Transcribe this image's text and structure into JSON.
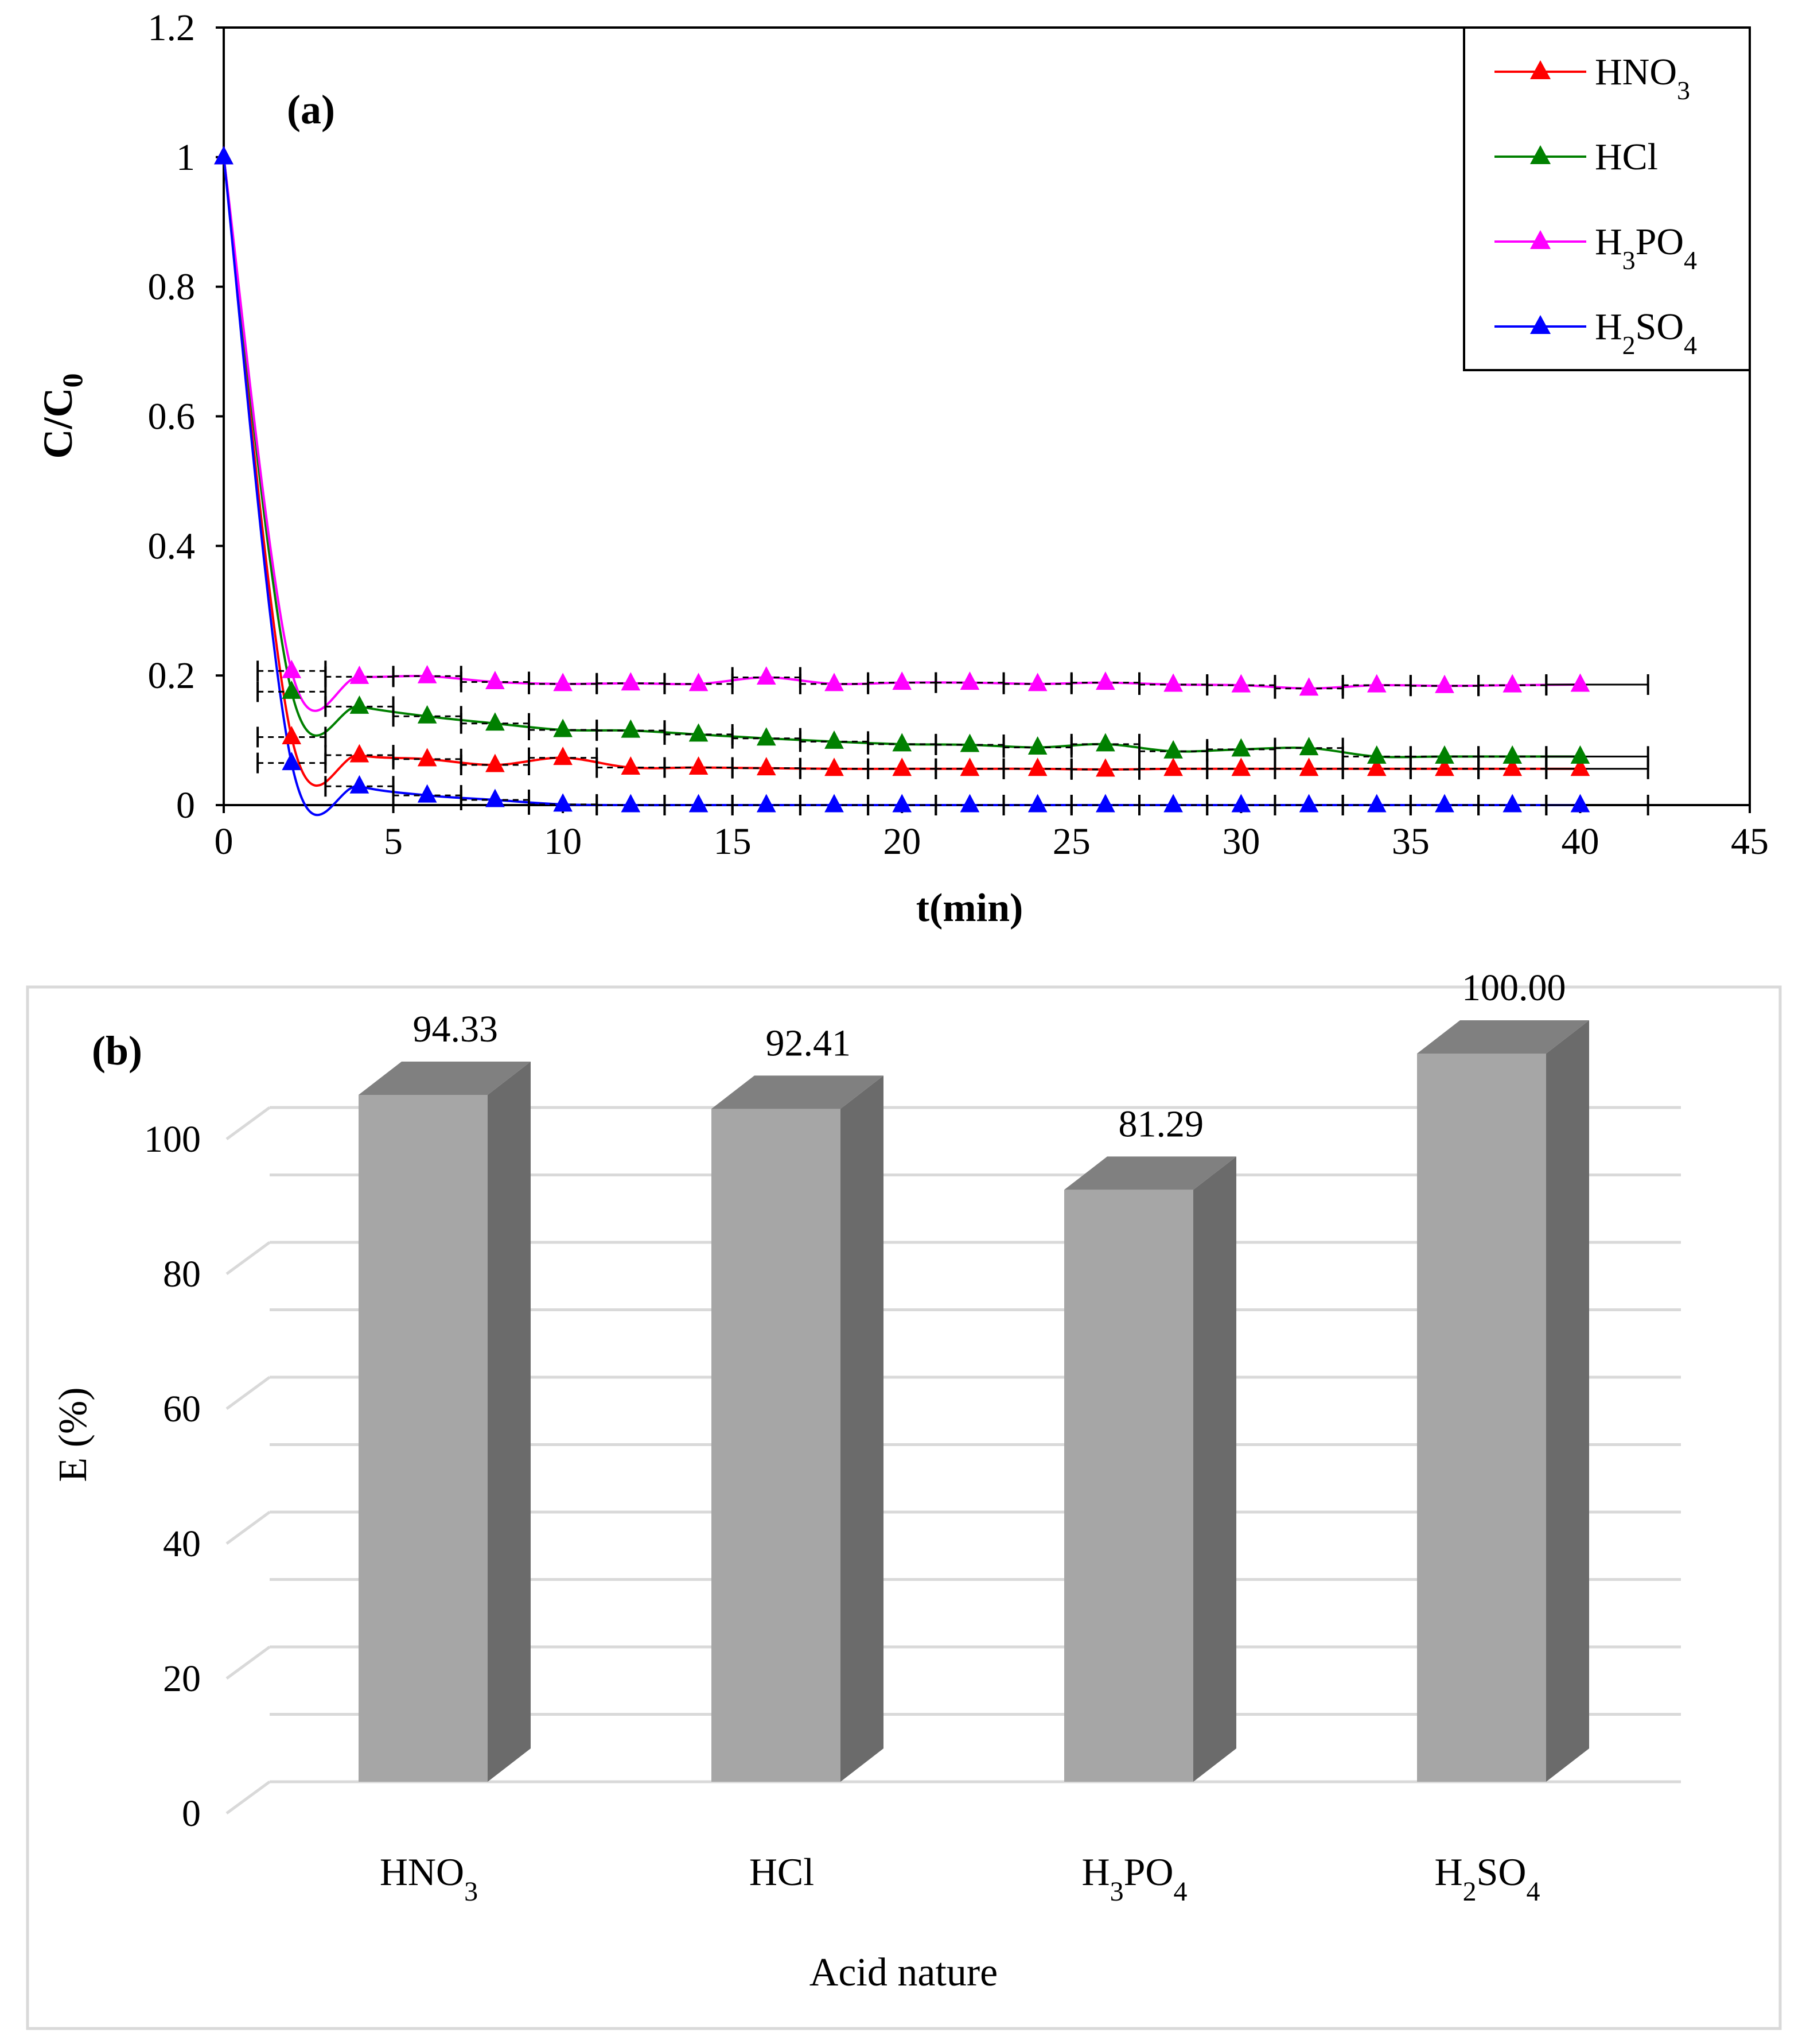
{
  "chart_data": [
    {
      "type": "line",
      "panel_label": "(a)",
      "xlabel": "t(min)",
      "ylabel": {
        "main": "C/C",
        "sub": "0"
      },
      "xlim": [
        0,
        45
      ],
      "ylim": [
        0,
        1.2
      ],
      "x_ticks": [
        "0",
        "5",
        "10",
        "15",
        "20",
        "25",
        "30",
        "35",
        "40",
        "45"
      ],
      "y_ticks": [
        "0",
        "0.2",
        "0.4",
        "0.6",
        "0.8",
        "1",
        "1.2"
      ],
      "grid": false,
      "legend_position": "top-right",
      "x": [
        0,
        2,
        4,
        6,
        8,
        10,
        12,
        14,
        16,
        18,
        20,
        22,
        24,
        26,
        28,
        30,
        32,
        34,
        36,
        38,
        40
      ],
      "series": [
        {
          "name": "HNO₃",
          "color": "#ff0000",
          "values": [
            1,
            0.105,
            0.077,
            0.071,
            0.062,
            0.073,
            0.058,
            0.058,
            0.057,
            0.056,
            0.056,
            0.056,
            0.056,
            0.055,
            0.056,
            0.056,
            0.056,
            0.056,
            0.056,
            0.056,
            0.056
          ]
        },
        {
          "name": "HCl",
          "color": "#008000",
          "values": [
            1,
            0.175,
            0.152,
            0.137,
            0.126,
            0.116,
            0.115,
            0.109,
            0.103,
            0.098,
            0.094,
            0.093,
            0.089,
            0.094,
            0.083,
            0.086,
            0.088,
            0.075,
            0.075,
            0.075,
            0.075
          ]
        },
        {
          "name": "H₃PO₄",
          "color": "#ff00ff",
          "values": [
            1,
            0.207,
            0.198,
            0.199,
            0.19,
            0.187,
            0.188,
            0.187,
            0.197,
            0.187,
            0.189,
            0.189,
            0.187,
            0.189,
            0.186,
            0.185,
            0.18,
            0.185,
            0.184,
            0.185,
            0.186
          ]
        },
        {
          "name": "H₂SO₄",
          "color": "#0000ff",
          "values": [
            1,
            0.065,
            0.029,
            0.015,
            0.008,
            0.001,
            0,
            0,
            0,
            0,
            0,
            0,
            0,
            0,
            0,
            0,
            0,
            0,
            0,
            0,
            0
          ]
        }
      ]
    },
    {
      "type": "bar",
      "panel_label": "(b)",
      "xlabel": "Acid nature",
      "ylabel": "E (%)",
      "ylim": [
        0,
        100
      ],
      "y_ticks": [
        "0",
        "20",
        "40",
        "60",
        "80",
        "100"
      ],
      "grid": true,
      "categories": [
        "HNO₃",
        "HCl",
        "H₃PO₄",
        "H₂SO₄"
      ],
      "values": [
        94.33,
        92.41,
        81.29,
        100.0
      ],
      "data_labels": [
        "94.33",
        "92.41",
        "81.29",
        "100.00"
      ],
      "colors": {
        "front": "#a6a6a6",
        "top": "#808080",
        "side": "#6b6b6b",
        "grid": "#d9d9d9",
        "frame": "#d9d9d9"
      }
    }
  ]
}
